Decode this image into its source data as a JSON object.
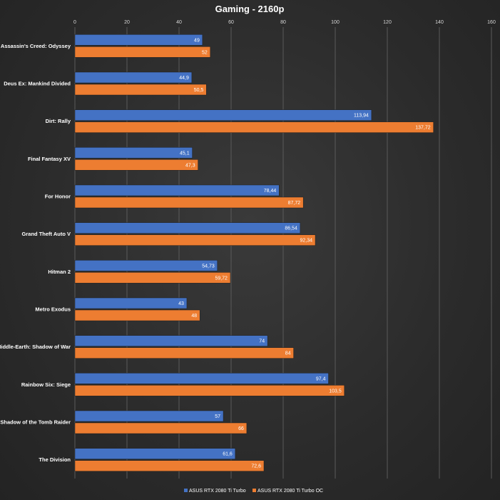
{
  "chart_data": {
    "type": "bar",
    "orientation": "horizontal",
    "title": "Gaming - 2160p",
    "xlabel": "",
    "ylabel": "",
    "xlim": [
      0,
      160
    ],
    "ticks": [
      0,
      20,
      40,
      60,
      80,
      100,
      120,
      140,
      160
    ],
    "grid": true,
    "legend_position": "bottom",
    "categories": [
      "Assassin's Creed: Odyssey",
      "Deus Ex: Mankind Divided",
      "Dirt: Rally",
      "Final Fantasy XV",
      "For Honor",
      "Grand Theft Auto V",
      "Hitman 2",
      "Metro Exodus",
      "Middle-Earth: Shadow of War",
      "Rainbow Six: Siege",
      "Shadow of the Tomb Raider",
      "The Division"
    ],
    "series": [
      {
        "name": "ASUS RTX 2080 Ti Turbo",
        "color": "#4472c4",
        "values": [
          49,
          44.9,
          113.94,
          45.1,
          78.44,
          86.54,
          54.73,
          43,
          74,
          97.4,
          57,
          61.6
        ],
        "labels": [
          "49",
          "44,9",
          "113,94",
          "45,1",
          "78,44",
          "86,54",
          "54,73",
          "43",
          "74",
          "97,4",
          "57",
          "61,6"
        ]
      },
      {
        "name": "ASUS RTX 2080 Ti Turbo OC",
        "color": "#ed7d31",
        "values": [
          52,
          50.5,
          137.72,
          47.3,
          87.72,
          92.34,
          59.72,
          48,
          84,
          103.5,
          66,
          72.6
        ],
        "labels": [
          "52",
          "50,5",
          "137,72",
          "47,3",
          "87,72",
          "92,34",
          "59,72",
          "48",
          "84",
          "103,5",
          "66",
          "72,6"
        ]
      }
    ]
  }
}
